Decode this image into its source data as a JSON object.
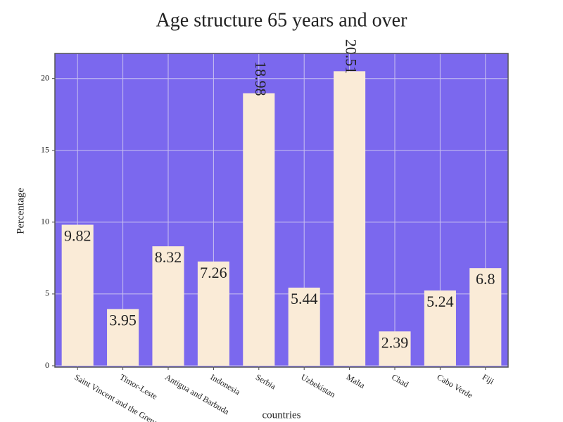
{
  "chart_data": {
    "type": "bar",
    "title": "Age structure 65 years and over",
    "x_label": "countries",
    "y_label": "Percentage",
    "categories": [
      "Saint Vincent and the Grenadines",
      "Timor-Leste",
      "Antigua and Barbuda",
      "Indonesia",
      "Serbia",
      "Uzbekistan",
      "Malta",
      "Chad",
      "Cabo Verde",
      "Fiji"
    ],
    "values": [
      9.82,
      3.95,
      8.32,
      7.26,
      18.98,
      5.44,
      20.51,
      2.39,
      5.24,
      6.8
    ],
    "color": "#faebd7",
    "background": "#7b68ee",
    "ylim": [
      0,
      21.7
    ],
    "yticks": [
      0,
      5,
      10,
      15,
      20
    ],
    "grid": true
  }
}
